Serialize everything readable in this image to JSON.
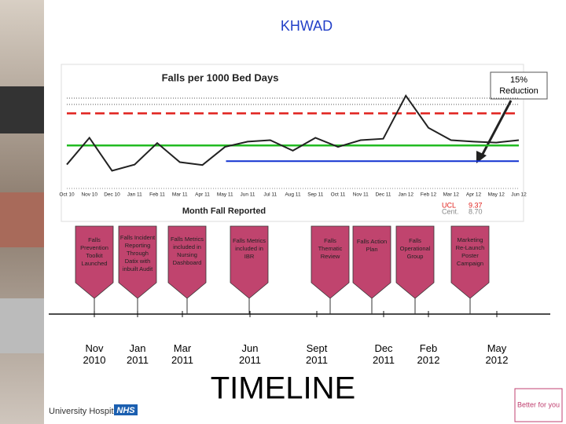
{
  "title": "KHWAD",
  "chart_data": {
    "type": "line",
    "title": "Falls per 1000 Bed Days",
    "x_label": "Month Fall Reported",
    "categories": [
      "Oct 10",
      "Nov 10",
      "Dec 10",
      "Jan 11",
      "Feb 11",
      "Mar 11",
      "Apr 11",
      "May 11",
      "Jun 11",
      "Jul 11",
      "Aug 11",
      "Sep 11",
      "Oct 11",
      "Nov 11",
      "Dec 11",
      "Jan 12",
      "Feb 12",
      "Mar 12",
      "Apr 12",
      "May 12",
      "Jun 12"
    ],
    "series": [
      {
        "name": "Falls per 1000 Bed Days",
        "color": "#222222",
        "values": [
          8.3,
          8.86,
          8.17,
          8.3,
          8.75,
          8.35,
          8.29,
          8.67,
          8.78,
          8.81,
          8.59,
          8.86,
          8.67,
          8.81,
          8.84,
          9.74,
          9.07,
          8.81,
          8.78,
          8.76,
          8.81
        ]
      }
    ],
    "reference_lines": [
      {
        "name": "UCL",
        "value": 9.37,
        "value_label": "9.37",
        "color": "#e0201c"
      },
      {
        "name": "Cent.",
        "value": 8.7,
        "value_label": "8.70",
        "color": "#22bb22"
      }
    ],
    "target": 8.37,
    "target_color": "#1030d0",
    "ylim": [
      7.8,
      10.1
    ],
    "annotation": "15% Reduction"
  },
  "timeline": {
    "label": "TIMELINE",
    "color": "#c0446e",
    "events": [
      {
        "label": "Falls Prevention Toolkit Launched",
        "date": "Nov 2010"
      },
      {
        "label": "Falls Incident Reporting Through Datix with inbuilt Audit",
        "date": "Jan 2011"
      },
      {
        "label": "Falls Metrics included in Nursing Dashboard",
        "date": "Mar 2011"
      },
      {
        "label": "Falls Metrics included in IBR",
        "date": "Jun 2011"
      },
      {
        "label": "Falls Thematic Review",
        "date": "Sept 2011"
      },
      {
        "label": "Falls Action Plan",
        "date": "Dec 2011"
      },
      {
        "label": "Falls Operational Group",
        "date": "Feb 2012"
      },
      {
        "label": "Marketing Re-Launch Poster Campaign",
        "date": "May 2012"
      }
    ]
  },
  "footer": {
    "org": "University Hospitals",
    "nhs": "NHS",
    "logo": "Better for you"
  }
}
